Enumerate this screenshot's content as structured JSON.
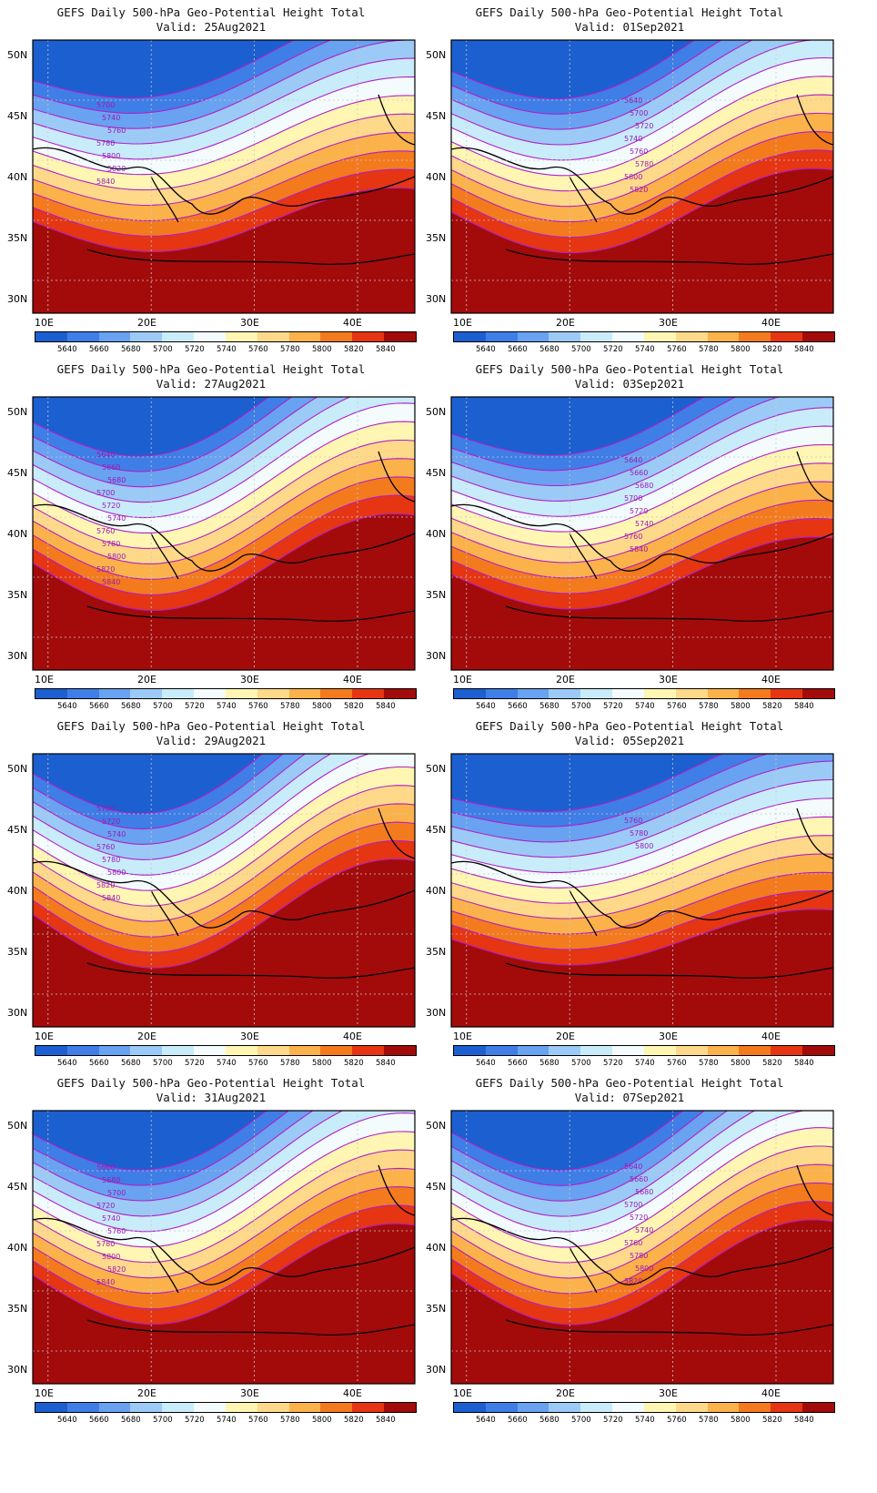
{
  "colorbar": {
    "labels": [
      "5640",
      "5660",
      "5680",
      "5700",
      "5720",
      "5740",
      "5760",
      "5780",
      "5800",
      "5820",
      "5840"
    ],
    "colors": [
      "#1c5fd0",
      "#3f7ee6",
      "#68a2f0",
      "#9ccaf6",
      "#c9ecfb",
      "#f3fbfd",
      "#fff6b3",
      "#ffd98a",
      "#fbb24a",
      "#f47a1e",
      "#e63512",
      "#a30b0b"
    ]
  },
  "axes": {
    "lat_labels": [
      "50N",
      "45N",
      "40N",
      "35N",
      "30N"
    ],
    "lon_labels": [
      "10E",
      "20E",
      "30E",
      "40E"
    ]
  },
  "panels": [
    {
      "title": "GEFS Daily 500-hPa Geo-Potential Height Total",
      "valid": "Valid: 25Aug2021",
      "contour_labels": [
        "5700",
        "5740",
        "5760",
        "5780",
        "5800",
        "5820",
        "5840"
      ],
      "trough_depth": 0.3
    },
    {
      "title": "GEFS Daily 500-hPa Geo-Potential Height Total",
      "valid": "Valid: 01Sep2021",
      "contour_labels": [
        "5640",
        "5700",
        "5720",
        "5740",
        "5760",
        "5780",
        "5800",
        "5820"
      ],
      "trough_depth": 0.55
    },
    {
      "title": "GEFS Daily 500-hPa Geo-Potential Height Total",
      "valid": "Valid: 27Aug2021",
      "contour_labels": [
        "5640",
        "5660",
        "5680",
        "5700",
        "5720",
        "5740",
        "5760",
        "5780",
        "5800",
        "5820",
        "5840"
      ],
      "trough_depth": 0.7
    },
    {
      "title": "GEFS Daily 500-hPa Geo-Potential Height Total",
      "valid": "Valid: 03Sep2021",
      "contour_labels": [
        "5640",
        "5660",
        "5680",
        "5700",
        "5720",
        "5740",
        "5760",
        "5840"
      ],
      "trough_depth": 0.4
    },
    {
      "title": "GEFS Daily 500-hPa Geo-Potential Height Total",
      "valid": "Valid: 29Aug2021",
      "contour_labels": [
        "5700",
        "5720",
        "5740",
        "5760",
        "5780",
        "5800",
        "5820",
        "5840"
      ],
      "trough_depth": 0.85
    },
    {
      "title": "GEFS Daily 500-hPa Geo-Potential Height Total",
      "valid": "Valid: 05Sep2021",
      "contour_labels": [
        "5760",
        "5780",
        "5800"
      ],
      "trough_depth": 0.2
    },
    {
      "title": "GEFS Daily 500-hPa Geo-Potential Height Total",
      "valid": "Valid: 31Aug2021",
      "contour_labels": [
        "5660",
        "5680",
        "5700",
        "5720",
        "5740",
        "5760",
        "5780",
        "5800",
        "5820",
        "5840"
      ],
      "trough_depth": 0.75
    },
    {
      "title": "GEFS Daily 500-hPa Geo-Potential Height Total",
      "valid": "Valid: 07Sep2021",
      "contour_labels": [
        "5640",
        "5660",
        "5680",
        "5700",
        "5720",
        "5740",
        "5760",
        "5780",
        "5800",
        "5820"
      ],
      "trough_depth": 0.8
    }
  ]
}
